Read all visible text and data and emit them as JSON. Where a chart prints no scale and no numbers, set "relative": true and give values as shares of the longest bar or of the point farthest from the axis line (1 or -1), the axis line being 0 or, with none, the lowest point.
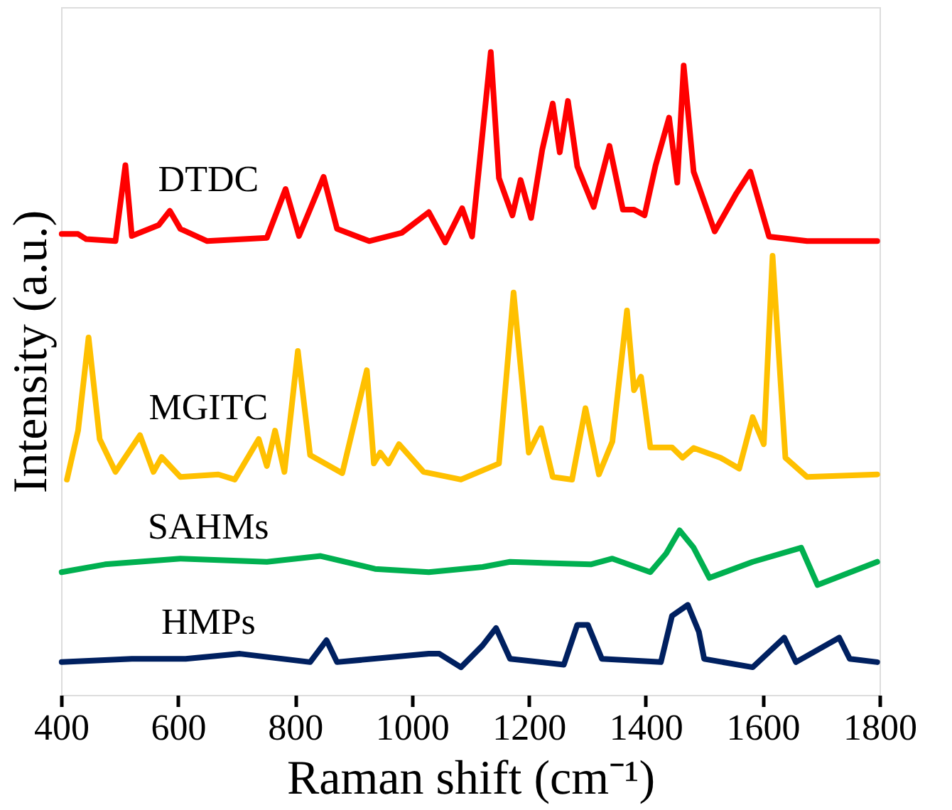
{
  "chart_data": {
    "type": "line",
    "xlabel": "Raman shift (cm⁻¹)",
    "ylabel": "Intensity (a.u.)",
    "relative": true,
    "xlim": [
      400,
      1800
    ],
    "xticks": [
      400,
      600,
      800,
      1000,
      1200,
      1400,
      1600,
      1800
    ],
    "grid": false,
    "marker": "none",
    "line_style": "solid",
    "series": [
      {
        "name": "DTDC",
        "color": "#ff0000",
        "x": [
          401,
          429,
          443,
          493,
          510,
          521,
          567,
          586,
          604,
          650,
          752,
          784,
          807,
          849,
          872,
          927,
          983,
          1029,
          1057,
          1086,
          1103,
          1135,
          1149,
          1172,
          1186,
          1204,
          1223,
          1241,
          1253,
          1267,
          1283,
          1311,
          1338,
          1361,
          1380,
          1398,
          1417,
          1440,
          1454,
          1465,
          1482,
          1518,
          1555,
          1579,
          1611,
          1676,
          1796
        ],
        "values": [
          0.717,
          0.717,
          0.709,
          0.706,
          0.824,
          0.714,
          0.731,
          0.753,
          0.725,
          0.706,
          0.711,
          0.787,
          0.714,
          0.806,
          0.725,
          0.706,
          0.719,
          0.751,
          0.704,
          0.757,
          0.713,
          1.0,
          0.804,
          0.746,
          0.801,
          0.742,
          0.848,
          0.92,
          0.844,
          0.924,
          0.822,
          0.759,
          0.854,
          0.755,
          0.755,
          0.746,
          0.824,
          0.898,
          0.797,
          0.979,
          0.814,
          0.721,
          0.78,
          0.814,
          0.713,
          0.706,
          0.706
        ]
      },
      {
        "name": "MGITC",
        "color": "#ffc000",
        "x": [
          410,
          429,
          447,
          466,
          493,
          535,
          558,
          572,
          604,
          669,
          697,
          738,
          752,
          766,
          782,
          805,
          826,
          881,
          923,
          935,
          946,
          960,
          978,
          1020,
          1084,
          1149,
          1174,
          1200,
          1221,
          1241,
          1274,
          1297,
          1320,
          1343,
          1368,
          1380,
          1392,
          1408,
          1445,
          1463,
          1482,
          1528,
          1560,
          1583,
          1602,
          1617,
          1639,
          1676,
          1796
        ],
        "values": [
          0.335,
          0.411,
          0.556,
          0.398,
          0.347,
          0.404,
          0.347,
          0.37,
          0.339,
          0.343,
          0.335,
          0.398,
          0.356,
          0.411,
          0.347,
          0.535,
          0.373,
          0.345,
          0.505,
          0.36,
          0.377,
          0.36,
          0.39,
          0.347,
          0.335,
          0.36,
          0.626,
          0.377,
          0.415,
          0.339,
          0.335,
          0.446,
          0.343,
          0.394,
          0.598,
          0.474,
          0.495,
          0.385,
          0.385,
          0.369,
          0.384,
          0.369,
          0.352,
          0.432,
          0.39,
          0.683,
          0.369,
          0.339,
          0.343
        ]
      },
      {
        "name": "SAHMs",
        "color": "#00b050",
        "x": [
          401,
          475,
          604,
          752,
          844,
          937,
          1029,
          1121,
          1168,
          1306,
          1343,
          1408,
          1435,
          1458,
          1482,
          1509,
          1583,
          1666,
          1694,
          1796
        ],
        "values": [
          0.191,
          0.203,
          0.212,
          0.207,
          0.216,
          0.196,
          0.191,
          0.199,
          0.207,
          0.203,
          0.212,
          0.191,
          0.22,
          0.256,
          0.229,
          0.182,
          0.207,
          0.229,
          0.171,
          0.207
        ]
      },
      {
        "name": "HMPs",
        "color": "#002060",
        "x": [
          401,
          521,
          613,
          706,
          826,
          854,
          872,
          1029,
          1047,
          1084,
          1121,
          1144,
          1168,
          1260,
          1283,
          1301,
          1325,
          1426,
          1445,
          1472,
          1491,
          1500,
          1583,
          1637,
          1657,
          1731,
          1749,
          1796
        ],
        "values": [
          0.051,
          0.056,
          0.056,
          0.064,
          0.051,
          0.085,
          0.051,
          0.064,
          0.064,
          0.043,
          0.077,
          0.104,
          0.056,
          0.047,
          0.109,
          0.109,
          0.056,
          0.051,
          0.123,
          0.14,
          0.098,
          0.056,
          0.043,
          0.089,
          0.051,
          0.089,
          0.056,
          0.051
        ]
      }
    ]
  }
}
